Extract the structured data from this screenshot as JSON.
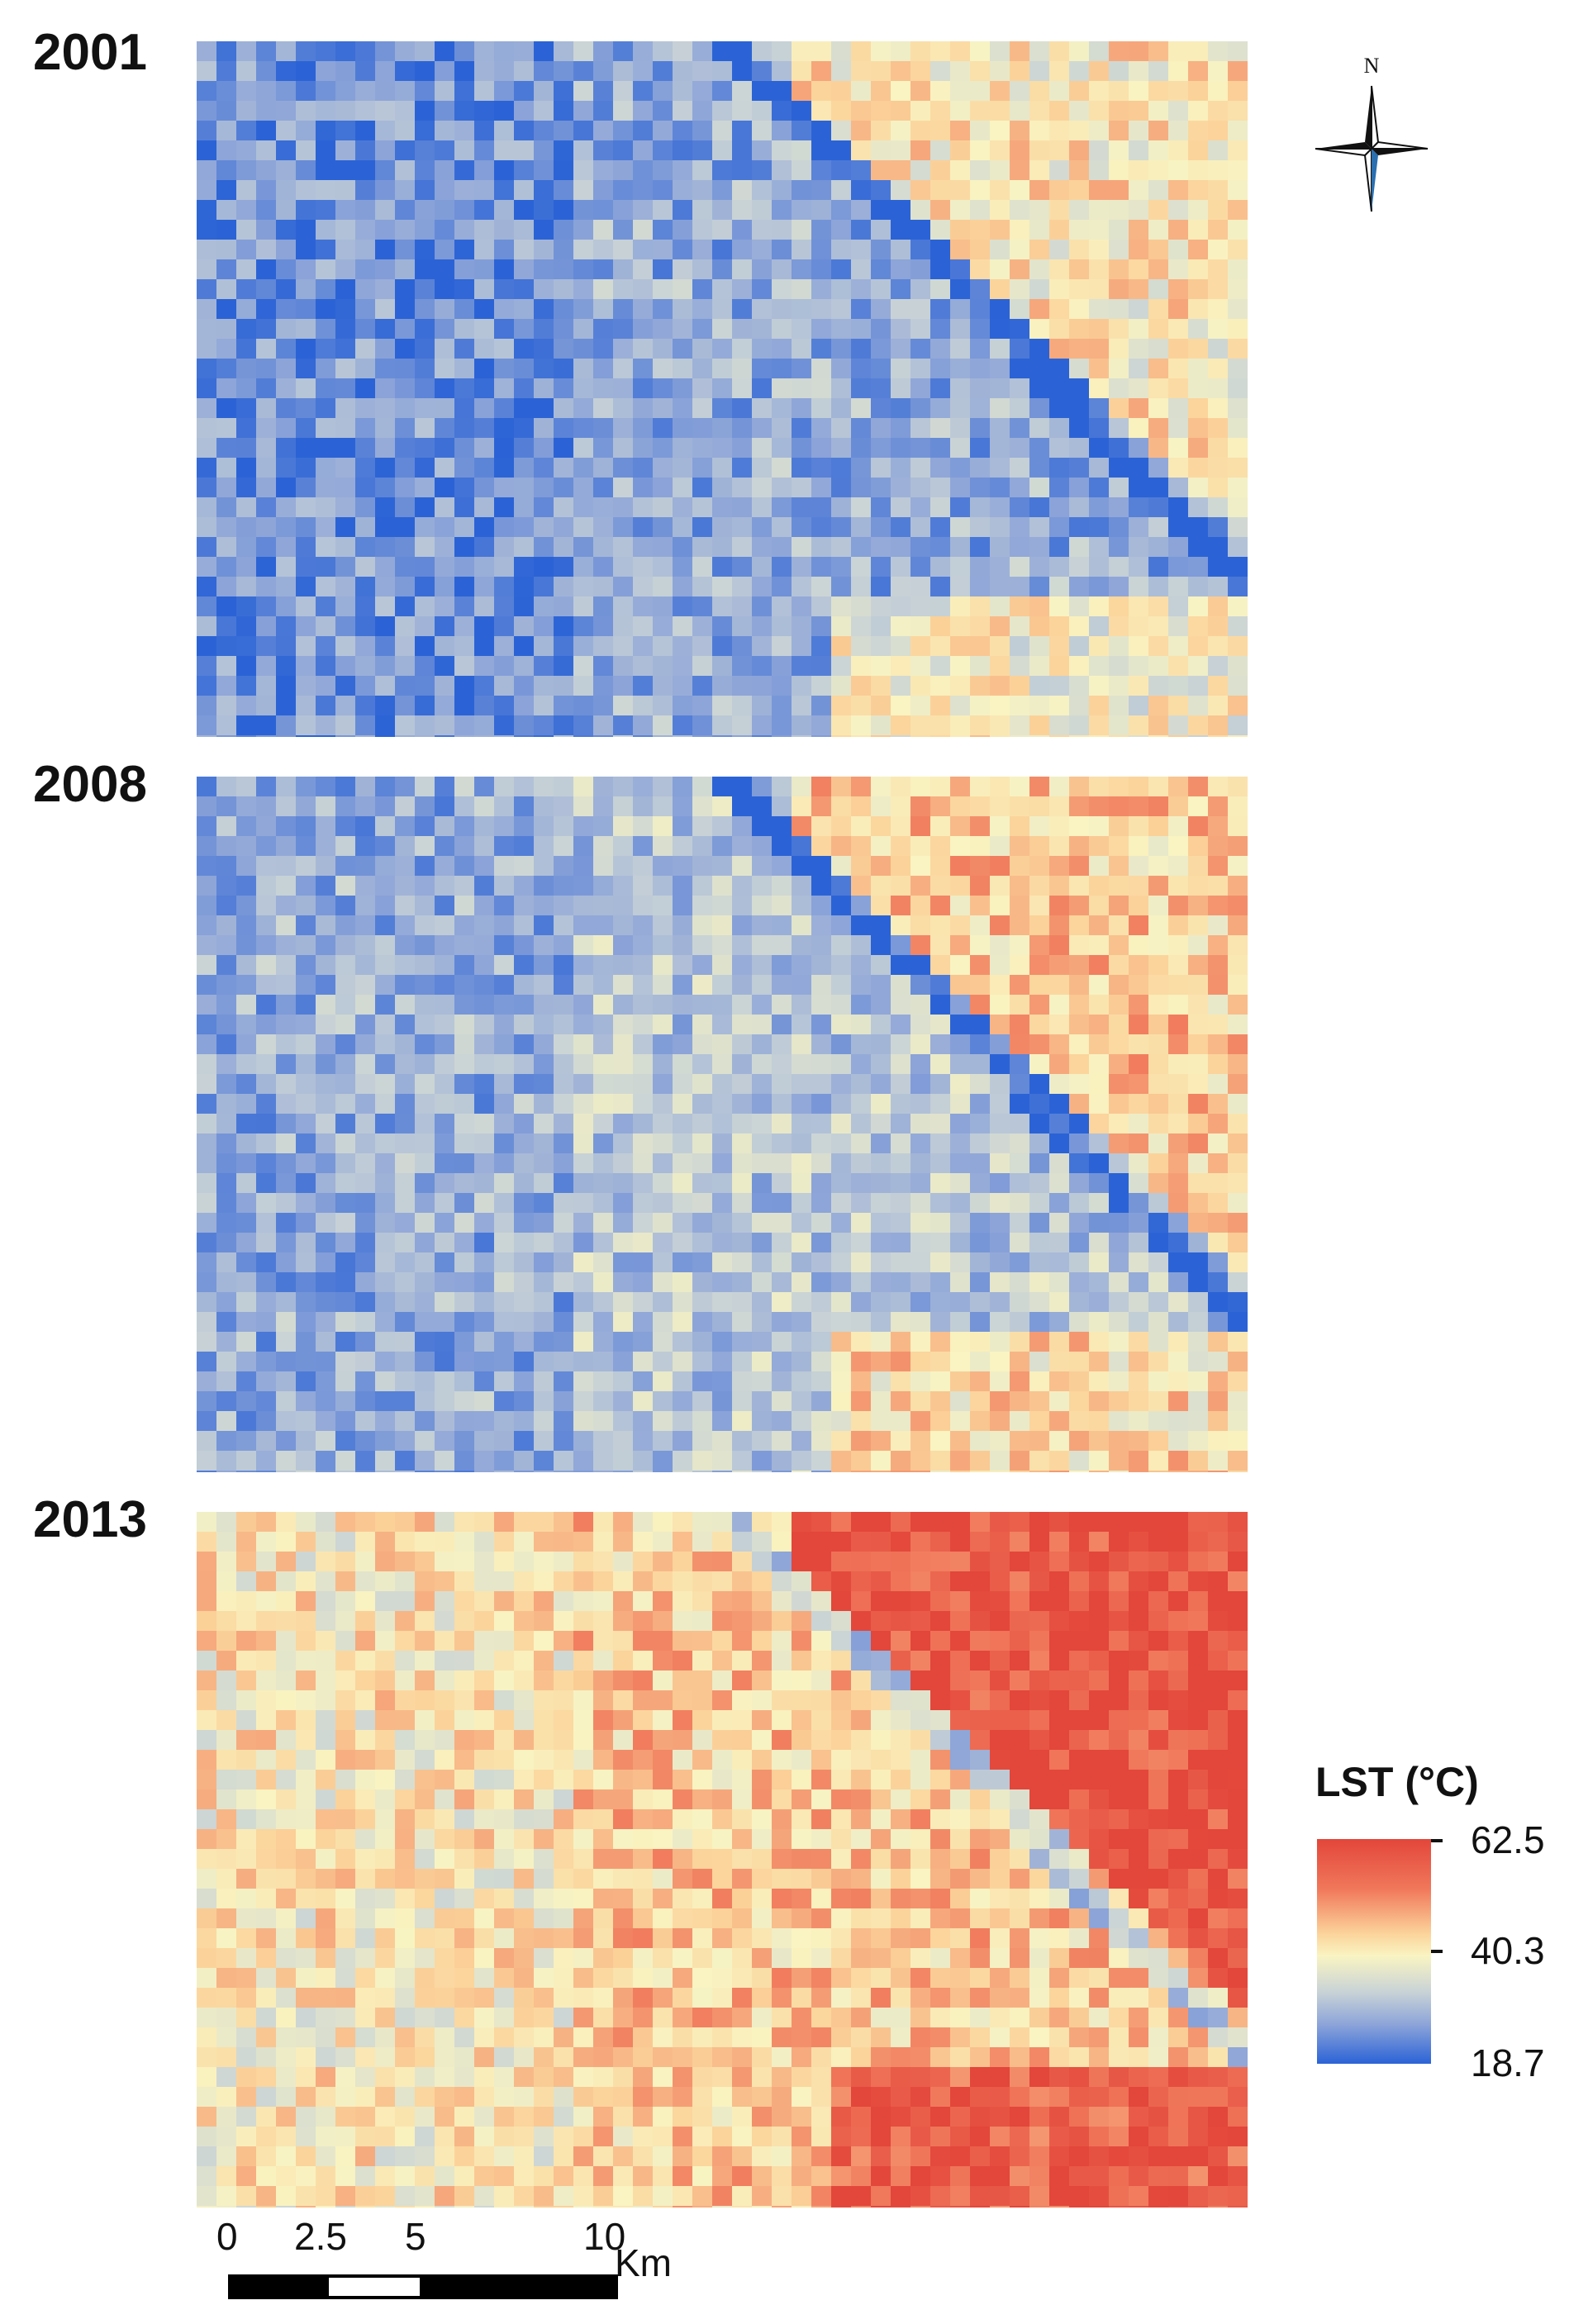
{
  "panels": [
    {
      "year": "2001",
      "heat": "cool"
    },
    {
      "year": "2008",
      "heat": "mild"
    },
    {
      "year": "2013",
      "heat": "hot"
    }
  ],
  "north_arrow": {
    "label": "N",
    "icon": "north-arrow-icon"
  },
  "legend": {
    "title": "LST (°C)",
    "max": "62.5",
    "mid": "40.3",
    "min": "18.7",
    "colors": {
      "high": "#e3463a",
      "mid": "#f9f4c2",
      "low": "#2b63d6"
    }
  },
  "scale_bar": {
    "ticks": [
      "0",
      "2.5",
      "5",
      "10"
    ],
    "unit": "Km"
  }
}
